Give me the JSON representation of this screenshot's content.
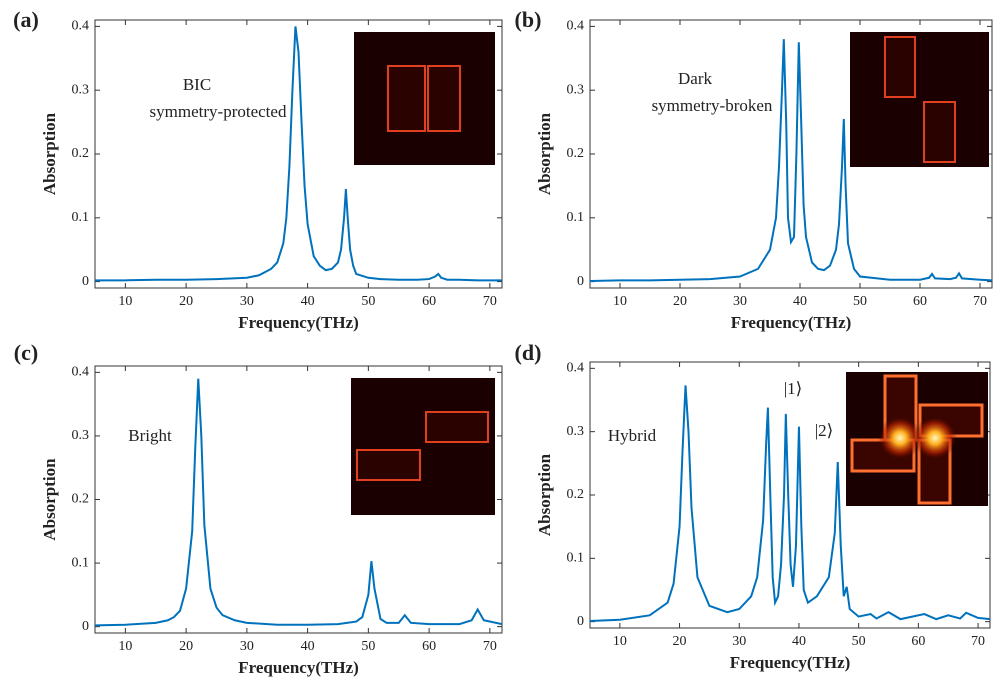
{
  "chart_data": [
    {
      "type": "line",
      "panel_label": "(a)",
      "xlabel": "Frequency(THz)",
      "ylabel": "Absorption",
      "color": "#0072bd",
      "annotations": [
        "BIC",
        "symmetry-protected"
      ],
      "xlim": [
        5,
        72
      ],
      "ylim": [
        -0.01,
        0.41
      ],
      "xticks": [
        10,
        20,
        30,
        40,
        50,
        60,
        70
      ],
      "yticks": [
        0,
        0.1,
        0.2,
        0.3,
        0.4
      ],
      "x": [
        5,
        10,
        15,
        20,
        25,
        30,
        32,
        34,
        35,
        36,
        36.5,
        37,
        37.5,
        38,
        38.5,
        39,
        39.5,
        40,
        41,
        42,
        43,
        44,
        45,
        45.5,
        46,
        46.3,
        46.6,
        47,
        47.5,
        48,
        50,
        52,
        55,
        58,
        60,
        61,
        61.5,
        62,
        63,
        65,
        68,
        72
      ],
      "values": [
        0.002,
        0.002,
        0.003,
        0.003,
        0.004,
        0.006,
        0.01,
        0.02,
        0.03,
        0.06,
        0.1,
        0.18,
        0.3,
        0.4,
        0.36,
        0.25,
        0.15,
        0.09,
        0.04,
        0.025,
        0.018,
        0.02,
        0.03,
        0.05,
        0.1,
        0.145,
        0.1,
        0.05,
        0.025,
        0.012,
        0.006,
        0.004,
        0.003,
        0.003,
        0.004,
        0.008,
        0.012,
        0.006,
        0.003,
        0.003,
        0.002,
        0.002
      ]
    },
    {
      "type": "line",
      "panel_label": "(b)",
      "xlabel": "Frequency(THz)",
      "ylabel": "Absorption",
      "color": "#0072bd",
      "annotations": [
        "Dark",
        "symmetry-broken"
      ],
      "xlim": [
        5,
        72
      ],
      "ylim": [
        -0.01,
        0.41
      ],
      "xticks": [
        10,
        20,
        30,
        40,
        50,
        60,
        70
      ],
      "yticks": [
        0,
        0.1,
        0.2,
        0.3,
        0.4
      ],
      "x": [
        5,
        10,
        15,
        20,
        25,
        30,
        33,
        35,
        36,
        36.5,
        37,
        37.3,
        37.7,
        38,
        38.5,
        39,
        39.4,
        39.8,
        40.2,
        40.6,
        41,
        42,
        43,
        44,
        45,
        46,
        46.5,
        47,
        47.3,
        47.6,
        48,
        49,
        50,
        55,
        60,
        61.5,
        62,
        62.5,
        65,
        66,
        66.5,
        67,
        70,
        72
      ],
      "values": [
        0.001,
        0.002,
        0.002,
        0.003,
        0.004,
        0.008,
        0.02,
        0.05,
        0.1,
        0.18,
        0.3,
        0.38,
        0.25,
        0.1,
        0.062,
        0.07,
        0.2,
        0.375,
        0.25,
        0.12,
        0.07,
        0.03,
        0.02,
        0.018,
        0.025,
        0.05,
        0.09,
        0.18,
        0.255,
        0.15,
        0.06,
        0.02,
        0.008,
        0.003,
        0.003,
        0.006,
        0.012,
        0.005,
        0.004,
        0.006,
        0.013,
        0.005,
        0.003,
        0.002
      ]
    },
    {
      "type": "line",
      "panel_label": "(c)",
      "xlabel": "Frequency(THz)",
      "ylabel": "Absorption",
      "color": "#0072bd",
      "annotations": [
        "Bright"
      ],
      "xlim": [
        5,
        72
      ],
      "ylim": [
        -0.01,
        0.41
      ],
      "xticks": [
        10,
        20,
        30,
        40,
        50,
        60,
        70
      ],
      "yticks": [
        0,
        0.1,
        0.2,
        0.3,
        0.4
      ],
      "x": [
        5,
        10,
        15,
        17,
        18,
        19,
        20,
        21,
        21.5,
        22,
        22.5,
        23,
        24,
        25,
        26,
        28,
        30,
        35,
        40,
        45,
        48,
        49,
        50,
        50.5,
        51,
        52,
        53,
        55,
        56,
        57,
        60,
        65,
        67,
        68,
        69,
        72
      ],
      "values": [
        0.002,
        0.003,
        0.006,
        0.01,
        0.015,
        0.025,
        0.06,
        0.15,
        0.28,
        0.39,
        0.3,
        0.16,
        0.06,
        0.03,
        0.018,
        0.01,
        0.006,
        0.003,
        0.003,
        0.004,
        0.008,
        0.015,
        0.05,
        0.103,
        0.06,
        0.012,
        0.006,
        0.006,
        0.018,
        0.006,
        0.004,
        0.004,
        0.01,
        0.027,
        0.01,
        0.004
      ]
    },
    {
      "type": "line",
      "panel_label": "(d)",
      "xlabel": "Frequency(THz)",
      "ylabel": "Absorption",
      "color": "#0072bd",
      "annotations": [
        "Hybrid",
        "|1⟩",
        "|2⟩"
      ],
      "xlim": [
        5,
        72
      ],
      "ylim": [
        -0.01,
        0.41
      ],
      "xticks": [
        10,
        20,
        30,
        40,
        50,
        60,
        70
      ],
      "yticks": [
        0,
        0.1,
        0.2,
        0.3,
        0.4
      ],
      "x": [
        5,
        10,
        15,
        18,
        19,
        20,
        20.5,
        21,
        21.5,
        22,
        23,
        25,
        28,
        30,
        32,
        33,
        34,
        34.5,
        34.8,
        35.2,
        35.6,
        36,
        36.5,
        37,
        37.5,
        37.8,
        38.2,
        38.6,
        39,
        39.5,
        40,
        40.4,
        40.8,
        41.5,
        43,
        45,
        46,
        46.5,
        47,
        47.5,
        48,
        48.5,
        50,
        52,
        53,
        55,
        57,
        61,
        63,
        65,
        67,
        68,
        70,
        72
      ],
      "values": [
        0.001,
        0.003,
        0.01,
        0.03,
        0.06,
        0.15,
        0.27,
        0.373,
        0.3,
        0.18,
        0.07,
        0.025,
        0.015,
        0.02,
        0.04,
        0.07,
        0.16,
        0.28,
        0.338,
        0.2,
        0.07,
        0.03,
        0.04,
        0.09,
        0.2,
        0.328,
        0.2,
        0.09,
        0.055,
        0.12,
        0.308,
        0.15,
        0.05,
        0.03,
        0.04,
        0.07,
        0.14,
        0.252,
        0.12,
        0.04,
        0.055,
        0.02,
        0.008,
        0.012,
        0.005,
        0.015,
        0.004,
        0.012,
        0.004,
        0.01,
        0.005,
        0.014,
        0.006,
        0.004
      ]
    }
  ]
}
